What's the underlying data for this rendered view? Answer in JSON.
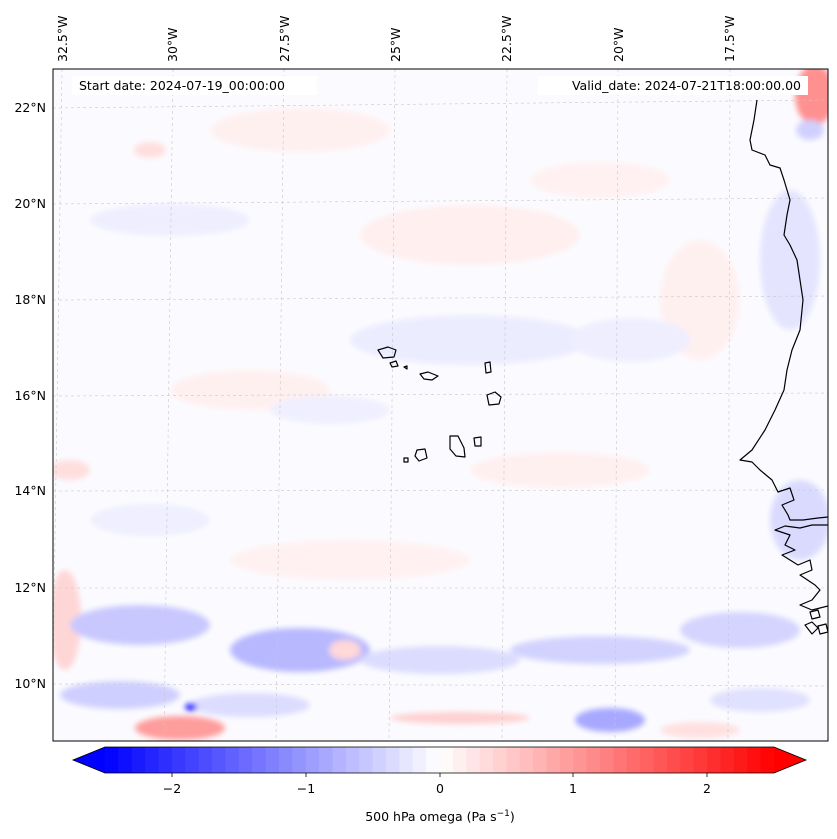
{
  "map": {
    "header_left": "Start date: 2024-07-19_00:00:00",
    "header_right": "Valid_date: 2024-07-21T18:00:00.00",
    "lon_labels": [
      "32.5°W",
      "30°W",
      "27.5°W",
      "25°W",
      "22.5°W",
      "20°W",
      "17.5°W"
    ],
    "lat_labels": [
      "22°N",
      "20°N",
      "18°N",
      "16°N",
      "14°N",
      "12°N",
      "10°N"
    ],
    "lat_values": [
      22,
      20,
      18,
      16,
      14,
      12,
      10
    ],
    "lon_values": [
      -32.5,
      -30,
      -27.5,
      -25,
      -22.5,
      -20,
      -17.5
    ]
  },
  "colorbar": {
    "label_prefix": "500 hPa omega (Pa s",
    "label_exp": "−1",
    "label_suffix": ")",
    "ticks": [
      "−2",
      "−1",
      "0",
      "1",
      "2"
    ],
    "tick_values": [
      -2,
      -1,
      0,
      1,
      2
    ],
    "min": -2.5,
    "max": 2.5,
    "extend": "both",
    "colormap": "bwr",
    "colors": {
      "low": "#0000ff",
      "mid": "#ffffff",
      "high": "#ff0000"
    }
  },
  "colors": {
    "coastline": "#000000",
    "gridline": "#c8c8c8",
    "field_weak_blue": "#e6e6ff",
    "field_mid_blue": "#9a9aff",
    "field_weak_red": "#ffe8e8",
    "field_mid_red": "#ff9a9a"
  }
}
